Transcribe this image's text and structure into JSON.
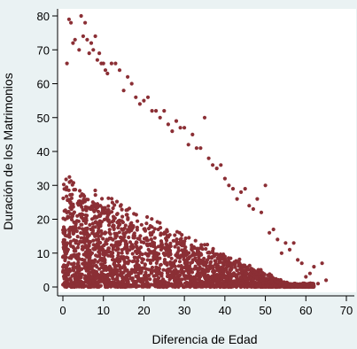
{
  "chart_data": {
    "type": "scatter",
    "title": "",
    "xlabel": "Diferencia de Edad",
    "ylabel": "Duración de los Matrimonios",
    "xlim": [
      0,
      70
    ],
    "ylim": [
      0,
      80
    ],
    "xticks": [
      "0",
      "10",
      "20",
      "30",
      "40",
      "50",
      "60",
      "70"
    ],
    "yticks": [
      "0",
      "10",
      "20",
      "30",
      "40",
      "50",
      "60",
      "70",
      "80"
    ],
    "grid": false,
    "legend": "none",
    "marker_color": "#8b2f35",
    "background_color": "#eaf2f3",
    "plot_background": "#ffffff",
    "series": [
      {
        "x": [
          1,
          1.5,
          2,
          2.5,
          3,
          4,
          4.5,
          5,
          5.5,
          6,
          6.5,
          7,
          7.5,
          8,
          8.5,
          9,
          9.5,
          10,
          10.5,
          11,
          12,
          13,
          14,
          15,
          16,
          17,
          18,
          19,
          20,
          21,
          22,
          23,
          24,
          25,
          26,
          27,
          28,
          29,
          30,
          31,
          32,
          33,
          34,
          35,
          36,
          37,
          38,
          39,
          40,
          41,
          42,
          43,
          44,
          45,
          46,
          47,
          48,
          49,
          50,
          51,
          52,
          53,
          54,
          55,
          56,
          57,
          58,
          59,
          60,
          61,
          62,
          63,
          64,
          65
        ],
        "y": [
          66,
          79,
          78,
          72,
          73,
          70,
          80,
          74,
          78,
          73,
          69,
          72,
          70,
          74,
          67,
          69,
          66,
          66,
          64,
          63,
          66,
          66,
          64,
          58,
          62,
          60,
          56,
          54,
          55,
          56,
          52,
          52,
          50,
          52,
          48,
          46,
          49,
          47,
          47,
          42,
          45,
          41,
          41,
          50,
          38,
          36,
          35,
          36,
          32,
          30,
          29,
          26,
          28,
          29,
          24,
          23,
          26,
          22,
          30,
          16,
          17,
          14,
          10,
          13,
          11,
          13,
          8,
          7,
          3,
          4,
          6,
          1,
          7,
          2
        ]
      }
    ]
  }
}
